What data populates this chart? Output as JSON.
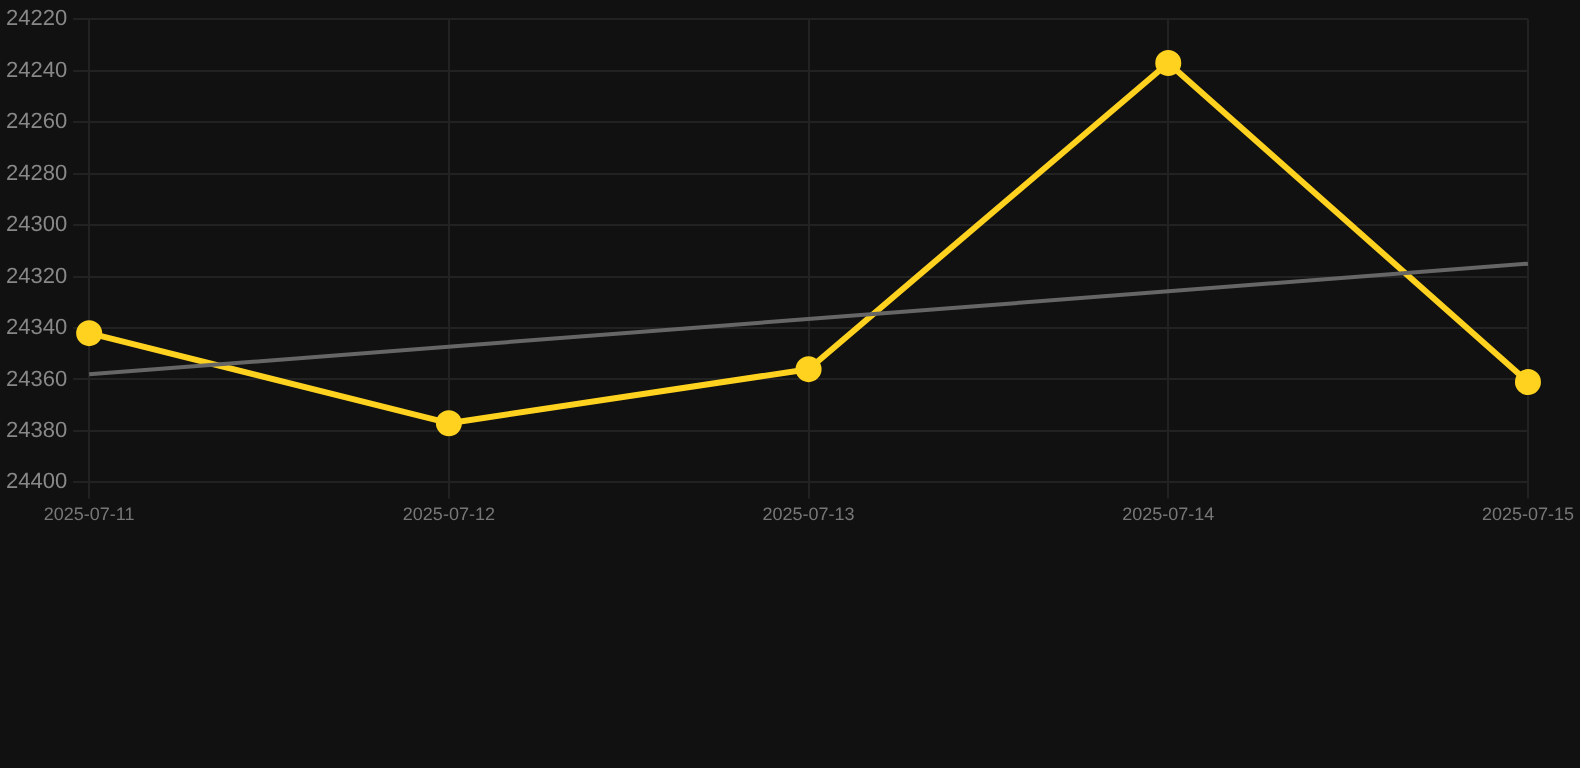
{
  "chart_data": {
    "type": "line",
    "categories": [
      "2025-07-11",
      "2025-07-12",
      "2025-07-13",
      "2025-07-14",
      "2025-07-15"
    ],
    "series": [
      {
        "color": "#ffd21f",
        "values": [
          24342,
          24377,
          24356,
          24237,
          24361
        ],
        "marker": "circle"
      },
      {
        "type": "line",
        "color": "#666666",
        "values": [
          24358,
          null,
          null,
          null,
          24315
        ],
        "marker": "none"
      }
    ],
    "ylim": [
      24400,
      24220
    ],
    "yticks": [
      24220,
      24240,
      24260,
      24280,
      24300,
      24320,
      24340,
      24360,
      24380,
      24400
    ],
    "grid": true,
    "line_style": "solid"
  }
}
